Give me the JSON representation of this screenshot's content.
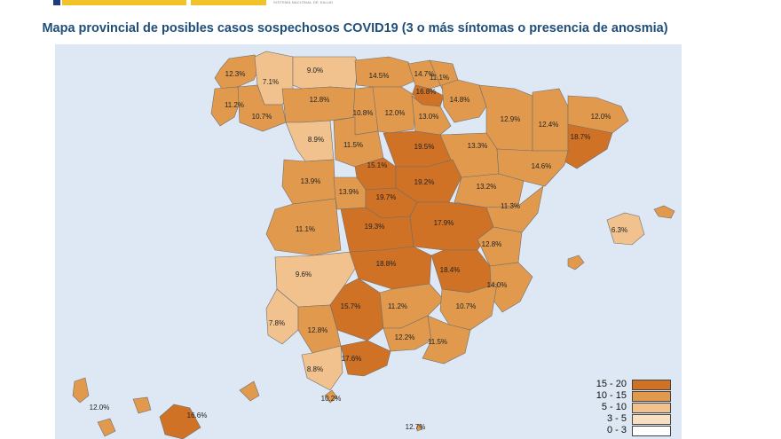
{
  "header": {
    "title": "Mapa provincial de posibles casos sospechosos COVID19 (3 o más síntomas o presencia de anosmia)",
    "logo_text": "SISTEMA NACIONAL DE SALUD"
  },
  "colors": {
    "range_15_20": "#d07226",
    "range_10_15": "#e19a4d",
    "range_5_10": "#f1c28d",
    "range_3_5": "#f8dfc1",
    "range_0_3": "#ffffff",
    "sea": "#dde8f4",
    "title": "#1f4e79"
  },
  "legend": {
    "items": [
      {
        "label": "15 - 20",
        "color": "#d07226"
      },
      {
        "label": "10 - 15",
        "color": "#e19a4d"
      },
      {
        "label": "5 - 10",
        "color": "#f1c28d"
      },
      {
        "label": "3 - 5",
        "color": "#f8dfc1"
      },
      {
        "label": "0 - 3",
        "color": "#ffffff"
      }
    ]
  },
  "provinces": [
    {
      "value": "12.3%"
    },
    {
      "value": "7.1%"
    },
    {
      "value": "9.0%"
    },
    {
      "value": "14.5%"
    },
    {
      "value": "14.7%"
    },
    {
      "value": "16.8%"
    },
    {
      "value": "11.1%"
    },
    {
      "value": "11.2%"
    },
    {
      "value": "10.7%"
    },
    {
      "value": "12.8%"
    },
    {
      "value": "10.8%"
    },
    {
      "value": "12.0%"
    },
    {
      "value": "13.0%"
    },
    {
      "value": "14.8%"
    },
    {
      "value": "12.9%"
    },
    {
      "value": "12.4%"
    },
    {
      "value": "12.0%"
    },
    {
      "value": "18.7%"
    },
    {
      "value": "8.9%"
    },
    {
      "value": "11.5%"
    },
    {
      "value": "19.5%"
    },
    {
      "value": "13.3%"
    },
    {
      "value": "15.1%"
    },
    {
      "value": "14.6%"
    },
    {
      "value": "13.9%"
    },
    {
      "value": "13.9%"
    },
    {
      "value": "19.2%"
    },
    {
      "value": "13.2%"
    },
    {
      "value": "19.7%"
    },
    {
      "value": "11.3%"
    },
    {
      "value": "11.1%"
    },
    {
      "value": "19.3%"
    },
    {
      "value": "17.9%"
    },
    {
      "value": "6.3%"
    },
    {
      "value": "12.8%"
    },
    {
      "value": "9.6%"
    },
    {
      "value": "18.8%"
    },
    {
      "value": "18.4%"
    },
    {
      "value": "14.0%"
    },
    {
      "value": "15.7%"
    },
    {
      "value": "11.2%"
    },
    {
      "value": "10.7%"
    },
    {
      "value": "7.8%"
    },
    {
      "value": "12.8%"
    },
    {
      "value": "12.2%"
    },
    {
      "value": "11.5%"
    },
    {
      "value": "8.8%"
    },
    {
      "value": "17.6%"
    },
    {
      "value": "10.2%"
    },
    {
      "value": "12.0%"
    },
    {
      "value": "16.6%"
    },
    {
      "value": "12.7%"
    }
  ]
}
